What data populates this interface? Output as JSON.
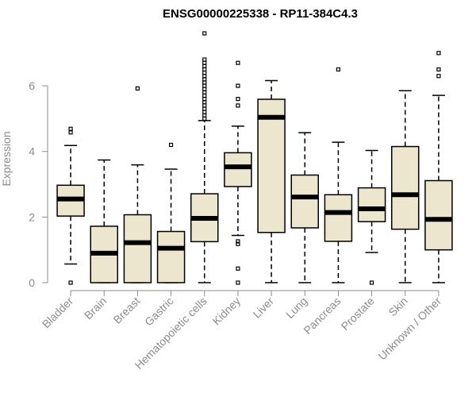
{
  "chart_data": {
    "type": "boxplot",
    "title": "ENSG00000225338 - RP11-384C4.3",
    "xlabel": "",
    "ylabel": "Expression",
    "ylim": [
      0,
      7.6
    ],
    "yticks": [
      0,
      2,
      4,
      6
    ],
    "categories": [
      "Bladder",
      "Brain",
      "Breast",
      "Gastric",
      "Hematopoietic cells",
      "Kidney",
      "Liver",
      "Lung",
      "Pancreas",
      "Prostate",
      "Skin",
      "Unknown / Other"
    ],
    "boxes": [
      {
        "name": "Bladder",
        "whisker_low": 0.57,
        "q1": 2.03,
        "median": 2.55,
        "q3": 2.97,
        "whisker_high": 4.18,
        "outliers": [
          0.0,
          4.58,
          4.69
        ]
      },
      {
        "name": "Brain",
        "whisker_low": 0.0,
        "q1": 0.0,
        "median": 0.9,
        "q3": 1.72,
        "whisker_high": 3.74,
        "outliers": []
      },
      {
        "name": "Breast",
        "whisker_low": 0.0,
        "q1": 0.0,
        "median": 1.22,
        "q3": 2.07,
        "whisker_high": 3.59,
        "outliers": [
          5.92
        ]
      },
      {
        "name": "Gastric",
        "whisker_low": 0.0,
        "q1": 0.0,
        "median": 1.05,
        "q3": 1.56,
        "whisker_high": 3.46,
        "outliers": [
          4.2
        ]
      },
      {
        "name": "Hematopoietic cells",
        "whisker_low": 0.0,
        "q1": 1.25,
        "median": 1.96,
        "q3": 2.71,
        "whisker_high": 4.94,
        "outliers": [
          5.0,
          5.1,
          5.2,
          5.3,
          5.4,
          5.5,
          5.6,
          5.7,
          5.8,
          5.9,
          6.0,
          6.1,
          6.2,
          6.3,
          6.4,
          6.5,
          6.6,
          6.7,
          6.8,
          7.6
        ]
      },
      {
        "name": "Kidney",
        "whisker_low": 1.44,
        "q1": 2.93,
        "median": 3.53,
        "q3": 3.96,
        "whisker_high": 4.77,
        "outliers": [
          0.0,
          0.43,
          1.18,
          1.26,
          5.4,
          5.6,
          6.0,
          6.7
        ]
      },
      {
        "name": "Liver",
        "whisker_low": 0.0,
        "q1": 1.53,
        "median": 5.04,
        "q3": 5.59,
        "whisker_high": 6.16,
        "outliers": []
      },
      {
        "name": "Lung",
        "whisker_low": 0.0,
        "q1": 1.67,
        "median": 2.61,
        "q3": 3.28,
        "whisker_high": 4.57,
        "outliers": []
      },
      {
        "name": "Pancreas",
        "whisker_low": 0.0,
        "q1": 1.26,
        "median": 2.14,
        "q3": 2.68,
        "whisker_high": 4.28,
        "outliers": [
          6.5
        ]
      },
      {
        "name": "Prostate",
        "whisker_low": 0.92,
        "q1": 1.86,
        "median": 2.25,
        "q3": 2.89,
        "whisker_high": 4.03,
        "outliers": [
          0.0
        ]
      },
      {
        "name": "Skin",
        "whisker_low": 0.0,
        "q1": 1.63,
        "median": 2.68,
        "q3": 4.15,
        "whisker_high": 5.85,
        "outliers": []
      },
      {
        "name": "Unknown / Other",
        "whisker_low": 0.0,
        "q1": 1.0,
        "median": 1.93,
        "q3": 3.11,
        "whisker_high": 5.71,
        "outliers": [
          6.3,
          6.5,
          7.0
        ]
      }
    ]
  }
}
